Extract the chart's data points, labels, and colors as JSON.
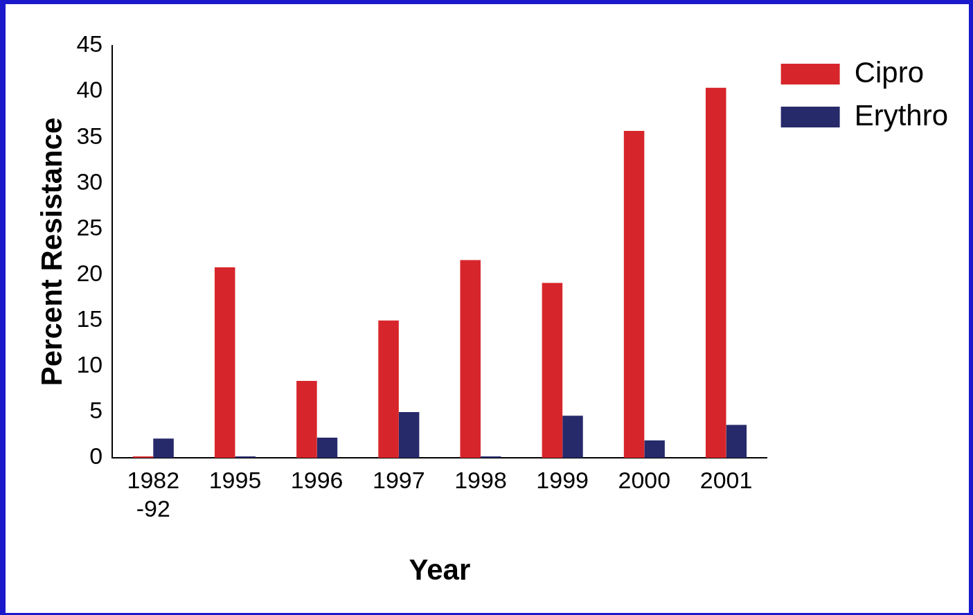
{
  "chart_data": {
    "type": "bar",
    "xlabel": "Year",
    "ylabel": "Percent Resistance",
    "categories": [
      "1982\n-92",
      "1995",
      "1996",
      "1997",
      "1998",
      "1999",
      "2000",
      "2001"
    ],
    "series": [
      {
        "name": "Cipro",
        "color": "#d7262b",
        "values": [
          0,
          20.8,
          8.4,
          15.0,
          21.6,
          19.1,
          35.7,
          40.4
        ]
      },
      {
        "name": "Erythro",
        "color": "#262a6a",
        "values": [
          2.1,
          0,
          2.2,
          5.0,
          0,
          4.6,
          1.9,
          3.6
        ]
      }
    ],
    "ylim": [
      0,
      45
    ],
    "yticks": [
      0,
      5,
      10,
      15,
      20,
      25,
      30,
      35,
      40,
      45
    ],
    "grid": false,
    "legend": "top right"
  }
}
